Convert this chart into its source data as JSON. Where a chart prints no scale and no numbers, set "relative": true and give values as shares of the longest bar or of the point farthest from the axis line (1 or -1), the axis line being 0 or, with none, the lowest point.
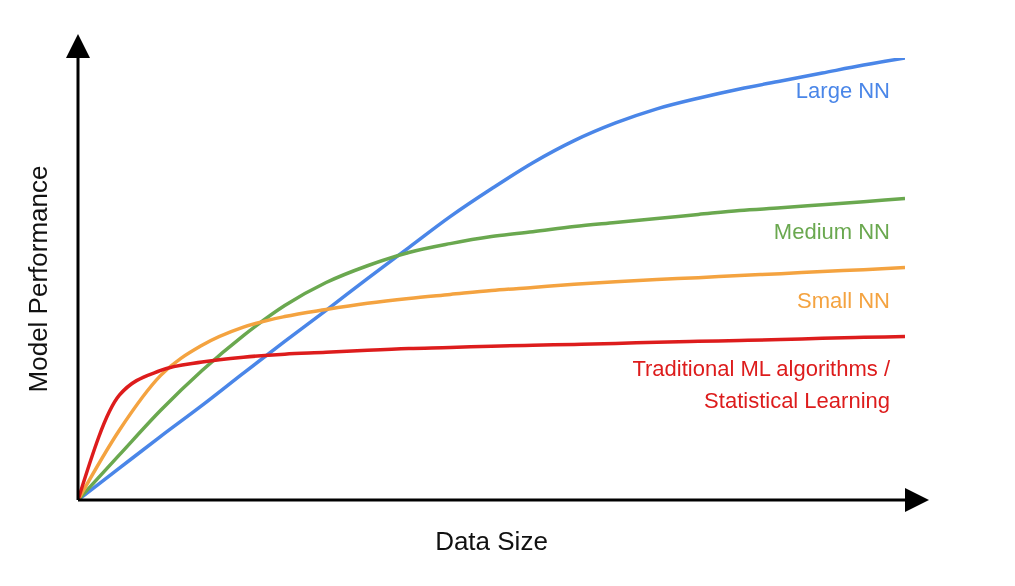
{
  "chart_data": {
    "type": "line",
    "relative": true,
    "xlabel": "Data Size",
    "ylabel": "Model Performance",
    "grid": false,
    "legend": false,
    "marker": "none",
    "line_style": "solid",
    "categories": [
      null,
      null,
      null,
      null,
      null,
      null,
      null,
      null,
      null,
      null,
      null,
      null,
      null,
      null,
      null,
      null,
      null,
      null,
      null,
      null,
      null
    ],
    "series": [
      {
        "name": "Large NN",
        "color": "#4a86e8",
        "values": [
          0,
          0.072,
          0.144,
          0.214,
          0.287,
          0.359,
          0.429,
          0.501,
          0.571,
          0.641,
          0.704,
          0.763,
          0.813,
          0.853,
          0.885,
          0.909,
          0.93,
          0.948,
          0.966,
          0.984,
          1
        ]
      },
      {
        "name": "Medium NN",
        "color": "#6aa84f",
        "values": [
          0,
          0.102,
          0.203,
          0.293,
          0.372,
          0.44,
          0.492,
          0.53,
          0.56,
          0.58,
          0.596,
          0.607,
          0.619,
          0.628,
          0.637,
          0.646,
          0.655,
          0.661,
          0.668,
          0.675,
          0.682
        ]
      },
      {
        "name": "Small NN",
        "color": "#f4a340",
        "values": [
          0,
          0.158,
          0.282,
          0.35,
          0.391,
          0.415,
          0.431,
          0.445,
          0.456,
          0.465,
          0.474,
          0.481,
          0.488,
          0.494,
          0.499,
          0.503,
          0.508,
          0.512,
          0.517,
          0.521,
          0.526
        ]
      },
      {
        "name": "Traditional ML algorithms / Statistical Learning",
        "color": "#dd1c1c",
        "values": [
          0,
          0.237,
          0.293,
          0.312,
          0.323,
          0.33,
          0.334,
          0.339,
          0.343,
          0.345,
          0.348,
          0.35,
          0.352,
          0.354,
          0.357,
          0.359,
          0.361,
          0.363,
          0.366,
          0.368,
          0.37
        ]
      }
    ]
  }
}
